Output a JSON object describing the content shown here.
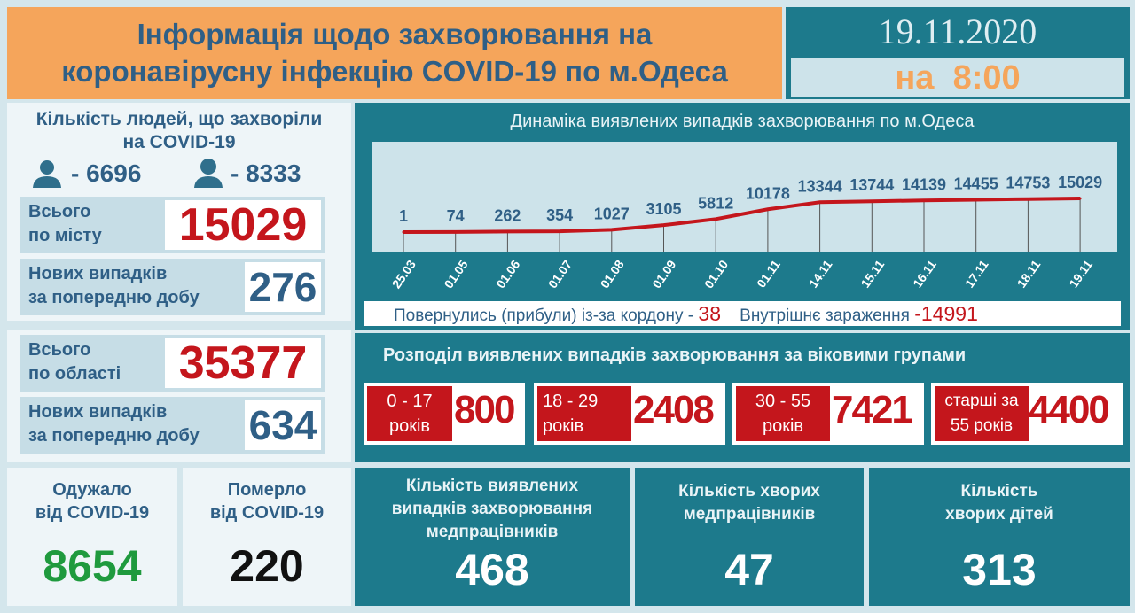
{
  "header": {
    "title_line1": "Інформація щодо захворювання на",
    "title_line2": "коронавірусну інфекцію COVID-19 по м.Одеса",
    "date": "19.11.2020",
    "time_prefix": "на",
    "time": "8:00"
  },
  "city": {
    "title_line1": "Кількість людей, що захворіли",
    "title_line2": "на COVID-19",
    "male_icon": "man-icon",
    "male": "- 6696",
    "female_icon": "woman-icon",
    "female": "- 8333",
    "total_label1": "Всього",
    "total_label2": "по місту",
    "total": "15029",
    "new_label1": "Нових випадків",
    "new_label2": "за попередню добу",
    "new": "276"
  },
  "region": {
    "total_label1": "Всього",
    "total_label2": "по області",
    "total": "35377",
    "new_label1": "Нових випадків",
    "new_label2": "за попередню добу",
    "new": "634"
  },
  "chart_data": {
    "type": "line",
    "title": "Динаміка виявлених випадків захворювання по м.Одеса",
    "categories": [
      "25.03",
      "01.05",
      "01.06",
      "01.07",
      "01.08",
      "01.09",
      "01.10",
      "01.11",
      "14.11",
      "15.11",
      "16.11",
      "17.11",
      "18.11",
      "19.11"
    ],
    "values": [
      1,
      74,
      262,
      354,
      1027,
      3105,
      5812,
      10178,
      13344,
      13744,
      14139,
      14455,
      14753,
      15029
    ],
    "line_color": "#c4161c"
  },
  "origin": {
    "returned_label": "Повернулись (прибули) із-за кордону -",
    "returned": "38",
    "internal_label": "Внутрішнє зараження",
    "internal": "-14991"
  },
  "ages": {
    "title": "Розподіл виявлених випадків захворювання за віковими групами",
    "groups": [
      {
        "l1": "0 - 17",
        "l2": "років",
        "v": "800"
      },
      {
        "l1": "18 - 29",
        "l2": "років",
        "v": "2408"
      },
      {
        "l1": "30 - 55",
        "l2": "років",
        "v": "7421"
      },
      {
        "l1": "старші за",
        "l2": "55 років",
        "v": "4400"
      }
    ]
  },
  "bottom": {
    "recovered_l1": "Одужало",
    "recovered_l2": "від COVID-19",
    "recovered": "8654",
    "died_l1": "Померло",
    "died_l2": "від COVID-19",
    "died": "220",
    "med_l1": "Кількість виявлених",
    "med_l2": "випадків захворювання",
    "med_l3": "медпрацівників",
    "med": "468",
    "medsick_l1": "Кількість хворих",
    "medsick_l2": "медпрацівників",
    "medsick": "47",
    "kids_l1": "Кількість",
    "kids_l2": "хворих дітей",
    "kids": "313"
  }
}
